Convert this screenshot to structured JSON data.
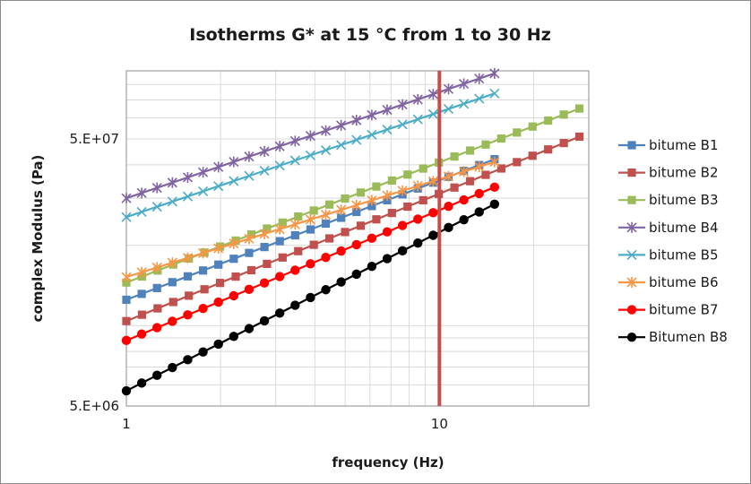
{
  "chart_data": {
    "type": "scatter",
    "title": "Isotherms G* at 15 °C from 1 to 30 Hz",
    "xlabel": "frequency (Hz)",
    "ylabel": "complex Modulus (Pa)",
    "x_scale": "log",
    "y_scale": "log",
    "xlim": [
      1,
      30
    ],
    "ylim": [
      5000000,
      90000000
    ],
    "x_ticks": [
      {
        "value": 1,
        "label": "1"
      },
      {
        "value": 10,
        "label": "10"
      }
    ],
    "y_ticks": [
      {
        "value": 5000000,
        "label": "5.E+06"
      },
      {
        "value": 50000000,
        "label": "5.E+07"
      }
    ],
    "grid": true,
    "legend_position": "right",
    "reference_line": {
      "x": 10,
      "color": "#c0504d"
    },
    "series": [
      {
        "name": "bitume B1",
        "color": "#4f81bd",
        "marker": "square",
        "x_start": 1,
        "x_end": 15,
        "y_start": 12500000,
        "y_end": 42000000
      },
      {
        "name": "bitume B2",
        "color": "#c0504d",
        "marker": "square",
        "x_start": 1,
        "x_end": 28,
        "y_start": 10400000,
        "y_end": 51000000
      },
      {
        "name": "bitume B3",
        "color": "#9bbb59",
        "marker": "square",
        "x_start": 1,
        "x_end": 28,
        "y_start": 14500000,
        "y_end": 65000000
      },
      {
        "name": "bitume B4",
        "color": "#8064a2",
        "marker": "star",
        "x_start": 1,
        "x_end": 15,
        "y_start": 30000000,
        "y_end": 88000000
      },
      {
        "name": "bitume B5",
        "color": "#4bacc6",
        "marker": "x",
        "x_start": 1,
        "x_end": 15,
        "y_start": 25500000,
        "y_end": 74000000
      },
      {
        "name": "bitume B6",
        "color": "#f79646",
        "marker": "star",
        "x_start": 1,
        "x_end": 15,
        "y_start": 15200000,
        "y_end": 41000000
      },
      {
        "name": "bitume B7",
        "color": "#ff0000",
        "marker": "circle",
        "x_start": 1,
        "x_end": 15,
        "y_start": 8800000,
        "y_end": 33000000
      },
      {
        "name": "Bitumen B8",
        "color": "#000000",
        "marker": "circle",
        "x_start": 1,
        "x_end": 15,
        "y_start": 5700000,
        "y_end": 28500000
      }
    ]
  }
}
